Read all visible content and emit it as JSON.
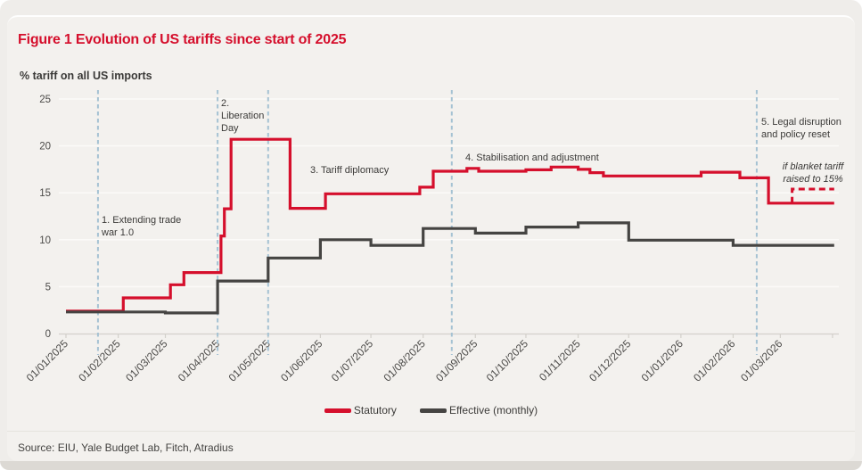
{
  "figure": {
    "title": "Figure 1 Evolution of US tariffs since start of 2025",
    "subtitle": "% tariff on all US imports",
    "source": "Source: EIU, Yale Budget Lab, Fitch, Atradius"
  },
  "colors": {
    "statutory": "#d50f2c",
    "effective": "#454442",
    "event_line": "#a5c2d3",
    "title": "#d50f2c",
    "text": "#3b3a38",
    "tick_text": "#4c4b49",
    "grid": "#fbfaf8",
    "axis": "#d3d0cb",
    "page_bg": "#efedea",
    "card_bg": "#f3f1ee",
    "bottom_band": "#dcd9d4",
    "card_top_line": "#fefefe",
    "divider": "#e6e3de"
  },
  "legend": {
    "items": [
      {
        "label": "Statutory",
        "color_key": "statutory"
      },
      {
        "label": "Effective (monthly)",
        "color_key": "effective"
      }
    ]
  },
  "chart_data": {
    "type": "line",
    "title": "Figure 1 Evolution of US tariffs since start of 2025",
    "ylabel": "% tariff on all US imports",
    "grid": "horizontal-only",
    "legend_position": "bottom-center",
    "x_axis": {
      "start": "2025-01-01",
      "end": "2026-04-02",
      "tick_format": "dd/mm/yyyy",
      "ticks": [
        {
          "date": "2025-01-01",
          "label": "01/01/2025"
        },
        {
          "date": "2025-02-01",
          "label": "01/02/2025"
        },
        {
          "date": "2025-03-01",
          "label": "01/03/2025"
        },
        {
          "date": "2025-04-01",
          "label": "01/04/2025"
        },
        {
          "date": "2025-05-01",
          "label": "01/05/2025"
        },
        {
          "date": "2025-06-01",
          "label": "01/06/2025"
        },
        {
          "date": "2025-07-01",
          "label": "01/07/2025"
        },
        {
          "date": "2025-08-01",
          "label": "01/08/2025"
        },
        {
          "date": "2025-09-01",
          "label": "01/09/2025"
        },
        {
          "date": "2025-10-01",
          "label": "01/10/2025"
        },
        {
          "date": "2025-11-01",
          "label": "01/11/2025"
        },
        {
          "date": "2025-12-01",
          "label": "01/12/2025"
        },
        {
          "date": "2026-01-01",
          "label": "01/01/2026"
        },
        {
          "date": "2026-02-01",
          "label": "01/02/2026"
        },
        {
          "date": "2026-03-01",
          "label": "01/03/2026"
        },
        {
          "date": "2026-04-01",
          "label": ""
        }
      ]
    },
    "y_axis": {
      "min": 0,
      "max": 25,
      "ticks": [
        0,
        5,
        10,
        15,
        20,
        25
      ]
    },
    "series": [
      {
        "name": "Statutory",
        "style": "solid-step",
        "color_key": "statutory",
        "points": [
          [
            "2025-01-01",
            2.4
          ],
          [
            "2025-02-04",
            3.8
          ],
          [
            "2025-03-04",
            5.2
          ],
          [
            "2025-03-12",
            6.5
          ],
          [
            "2025-04-03",
            10.4
          ],
          [
            "2025-04-05",
            13.3
          ],
          [
            "2025-04-09",
            20.7
          ],
          [
            "2025-05-14",
            13.35
          ],
          [
            "2025-06-04",
            14.9
          ],
          [
            "2025-07-30",
            15.6
          ],
          [
            "2025-08-07",
            17.3
          ],
          [
            "2025-08-27",
            17.6
          ],
          [
            "2025-09-03",
            17.3
          ],
          [
            "2025-10-01",
            17.45
          ],
          [
            "2025-10-16",
            17.75
          ],
          [
            "2025-11-01",
            17.5
          ],
          [
            "2025-11-08",
            17.15
          ],
          [
            "2025-11-16",
            16.8
          ],
          [
            "2026-01-13",
            17.2
          ],
          [
            "2026-02-05",
            16.6
          ],
          [
            "2026-02-22",
            13.9
          ]
        ]
      },
      {
        "name": "Effective (monthly)",
        "style": "solid-step",
        "color_key": "effective",
        "points": [
          [
            "2025-01-01",
            2.3
          ],
          [
            "2025-03-01",
            2.2
          ],
          [
            "2025-04-01",
            5.6
          ],
          [
            "2025-05-01",
            8.05
          ],
          [
            "2025-06-01",
            10.0
          ],
          [
            "2025-07-01",
            9.4
          ],
          [
            "2025-08-01",
            11.2
          ],
          [
            "2025-09-01",
            10.7
          ],
          [
            "2025-10-01",
            11.35
          ],
          [
            "2025-11-01",
            11.8
          ],
          [
            "2025-12-01",
            9.95
          ],
          [
            "2026-02-01",
            9.4
          ]
        ]
      }
    ],
    "scenario_series": {
      "name": "if blanket tariff raised to 15%",
      "style": "dashed-step",
      "color_key": "statutory",
      "points": [
        [
          "2026-03-08",
          13.9
        ],
        [
          "2026-03-08",
          15.4
        ],
        [
          "2026-04-02",
          15.4
        ]
      ]
    },
    "event_lines": [
      {
        "date": "2025-01-20",
        "phase": "1. Extending trade war 1.0"
      },
      {
        "date": "2025-04-01",
        "phase": "2. Liberation Day"
      },
      {
        "date": "2025-05-01",
        "phase": "3. Tariff diplomacy"
      },
      {
        "date": "2025-08-18",
        "phase": "4. Stabilisation and adjustment"
      },
      {
        "date": "2026-02-15",
        "phase": "5. Legal disruption and policy reset"
      }
    ],
    "annotations": [
      {
        "lines": [
          "1. Extending trade",
          "war 1.0"
        ],
        "x": 114,
        "y": 240,
        "align": "left",
        "italic": false
      },
      {
        "lines": [
          "2.",
          "Liberation",
          "Day"
        ],
        "x": 248,
        "y": 109,
        "align": "left",
        "italic": false
      },
      {
        "lines": [
          "3. Tariff diplomacy"
        ],
        "x": 348,
        "y": 184,
        "align": "left",
        "italic": false
      },
      {
        "lines": [
          "4. Stabilisation and adjustment"
        ],
        "x": 522,
        "y": 170,
        "align": "left",
        "italic": false
      },
      {
        "lines": [
          "5. Legal disruption",
          "and policy reset"
        ],
        "x": 854,
        "y": 130,
        "align": "left",
        "italic": false
      },
      {
        "lines": [
          "if blanket tariff",
          "raised to 15%"
        ],
        "x": 912,
        "y": 180,
        "align": "center",
        "italic": true
      }
    ]
  }
}
